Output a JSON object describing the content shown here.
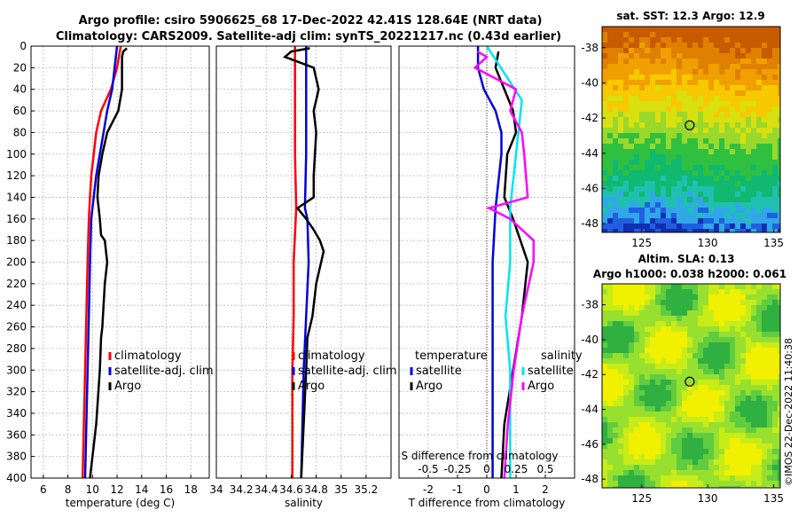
{
  "title_line1": "Argo profile: csiro 5906625_68 17-Dec-2022 42.41S 128.64E (NRT data)",
  "title_line2": "Climatology: CARS2009. Satellite-adj clim: synTS_20221217.nc (0.43d earlier)",
  "colors": {
    "climatology": "#ff0000",
    "satellite": "#0000dd",
    "argo": "#000000",
    "sal_satellite": "#00e5ee",
    "sal_argo": "#ff00ff"
  },
  "chart_data": [
    {
      "type": "line",
      "name": "temperature_profile",
      "xlabel": "temperature (deg C)",
      "ylabel": "",
      "xlim": [
        5,
        19.5
      ],
      "ylim": [
        400,
        0
      ],
      "xticks": [
        6,
        8,
        10,
        12,
        14,
        16,
        18
      ],
      "yticks": [
        0,
        20,
        40,
        60,
        80,
        100,
        120,
        140,
        160,
        180,
        200,
        220,
        240,
        260,
        280,
        300,
        320,
        340,
        360,
        380,
        400
      ],
      "legend": [
        "climatology",
        "satellite-adj. clim",
        "Argo"
      ],
      "series": [
        {
          "name": "climatology",
          "depth": [
            0,
            20,
            40,
            60,
            80,
            100,
            120,
            140,
            160,
            200,
            250,
            300,
            350,
            400
          ],
          "values": [
            12.3,
            12.0,
            11.5,
            10.7,
            10.3,
            10.1,
            9.9,
            9.8,
            9.7,
            9.6,
            9.5,
            9.4,
            9.3,
            9.2
          ]
        },
        {
          "name": "satellite-adj. clim",
          "depth": [
            0,
            20,
            40,
            60,
            80,
            100,
            120,
            140,
            160,
            200,
            250,
            300,
            350,
            400
          ],
          "values": [
            12.0,
            11.8,
            11.6,
            11.2,
            10.9,
            10.6,
            10.3,
            10.1,
            9.9,
            9.8,
            9.7,
            9.6,
            9.5,
            9.4
          ]
        },
        {
          "name": "Argo",
          "depth": [
            2,
            5,
            10,
            20,
            40,
            60,
            80,
            100,
            120,
            140,
            160,
            175,
            180,
            200,
            220,
            240,
            260,
            270,
            300,
            350,
            400
          ],
          "values": [
            12.8,
            12.5,
            12.4,
            12.4,
            12.4,
            12.1,
            11.2,
            10.8,
            10.5,
            10.4,
            10.6,
            10.7,
            11.0,
            11.2,
            11.0,
            10.9,
            10.8,
            10.7,
            10.6,
            10.3,
            9.8
          ]
        }
      ]
    },
    {
      "type": "line",
      "name": "salinity_profile",
      "xlabel": "salinity",
      "ylabel": "",
      "xlim": [
        34,
        35.4
      ],
      "ylim": [
        400,
        0
      ],
      "xticks": [
        34,
        34.2,
        34.4,
        34.6,
        34.8,
        35,
        35.2
      ],
      "legend": [
        "climatology",
        "satellite-adj. clim",
        "Argo"
      ],
      "series": [
        {
          "name": "climatology",
          "depth": [
            0,
            50,
            100,
            150,
            200,
            250,
            300,
            350,
            400
          ],
          "values": [
            34.63,
            34.63,
            34.63,
            34.64,
            34.62,
            34.62,
            34.61,
            34.61,
            34.61
          ]
        },
        {
          "name": "satellite-adj. clim",
          "depth": [
            0,
            50,
            100,
            150,
            160,
            200,
            250,
            300,
            350,
            400
          ],
          "values": [
            34.72,
            34.72,
            34.72,
            34.71,
            34.73,
            34.74,
            34.72,
            34.7,
            34.69,
            34.68
          ]
        },
        {
          "name": "Argo",
          "depth": [
            2,
            5,
            10,
            20,
            40,
            60,
            80,
            100,
            120,
            140,
            150,
            160,
            170,
            180,
            190,
            200,
            220,
            250,
            270,
            300,
            350,
            400
          ],
          "values": [
            34.75,
            34.6,
            34.55,
            34.78,
            34.82,
            34.78,
            34.8,
            34.79,
            34.78,
            34.78,
            34.65,
            34.72,
            34.78,
            34.83,
            34.86,
            34.84,
            34.8,
            34.77,
            34.73,
            34.72,
            34.7,
            34.68
          ]
        }
      ]
    },
    {
      "type": "line",
      "name": "difference_from_climatology",
      "xlabel": "T difference from climatology",
      "xlabel_top": "S difference from climatology",
      "xlim": [
        -3,
        3
      ],
      "ylim": [
        400,
        0
      ],
      "xticks": [
        -2,
        -1,
        0,
        1,
        2
      ],
      "xticks_top": [
        -0.5,
        -0.25,
        0,
        0.25,
        0.5
      ],
      "legend_temperature": [
        "satellite",
        "Argo"
      ],
      "legend_salinity": [
        "satellite",
        "Argo"
      ],
      "legend_temperature_title": "temperature",
      "legend_salinity_title": "salinity",
      "series": [
        {
          "name": "temperature satellite",
          "depth": [
            0,
            20,
            40,
            60,
            80,
            100,
            150,
            200,
            250,
            300,
            400
          ],
          "values": [
            -0.3,
            -0.3,
            -0.1,
            0.3,
            0.5,
            0.5,
            0.3,
            0.2,
            0.2,
            0.2,
            0.2
          ]
        },
        {
          "name": "temperature Argo",
          "depth": [
            5,
            20,
            40,
            60,
            80,
            100,
            140,
            160,
            200,
            250,
            300,
            350,
            400
          ],
          "values": [
            0.4,
            0.3,
            0.6,
            0.9,
            1.0,
            0.7,
            0.6,
            0.9,
            1.4,
            1.2,
            0.9,
            0.6,
            0.5
          ]
        },
        {
          "name": "salinity satellite",
          "depth": [
            0,
            50,
            100,
            150,
            200,
            250,
            300,
            400
          ],
          "values": [
            0.0,
            0.3,
            0.25,
            0.2,
            0.2,
            0.16,
            0.2,
            0.2
          ]
        },
        {
          "name": "salinity Argo",
          "depth": [
            5,
            10,
            20,
            40,
            60,
            80,
            100,
            140,
            150,
            160,
            180,
            200,
            250,
            300,
            350,
            400
          ],
          "values": [
            -0.08,
            0.0,
            -0.1,
            0.25,
            0.2,
            0.3,
            0.32,
            0.35,
            0.02,
            0.2,
            0.4,
            0.4,
            0.3,
            0.23,
            0.18,
            0.15
          ]
        }
      ]
    },
    {
      "type": "heatmap",
      "name": "sst_map",
      "title": "sat. SST: 12.3 Argo: 12.9",
      "xlim": [
        122,
        135.5
      ],
      "ylim": [
        -48.5,
        -36.8
      ],
      "xticks": [
        125,
        130,
        135
      ],
      "yticks": [
        -38,
        -40,
        -42,
        -44,
        -46,
        -48
      ],
      "marker": {
        "lon": 128.64,
        "lat": -42.41
      }
    },
    {
      "type": "heatmap",
      "name": "sla_map",
      "title_line1": "Altim. SLA: 0.13",
      "title_line2": "Argo h1000: 0.038 h2000: 0.061",
      "xlim": [
        122,
        135.5
      ],
      "ylim": [
        -48.5,
        -36.8
      ],
      "xticks": [
        125,
        130,
        135
      ],
      "yticks": [
        -38,
        -40,
        -42,
        -44,
        -46,
        -48
      ],
      "marker": {
        "lon": 128.64,
        "lat": -42.41
      }
    }
  ],
  "credit": "©IMOS 22-Dec-2022 11:40:38"
}
